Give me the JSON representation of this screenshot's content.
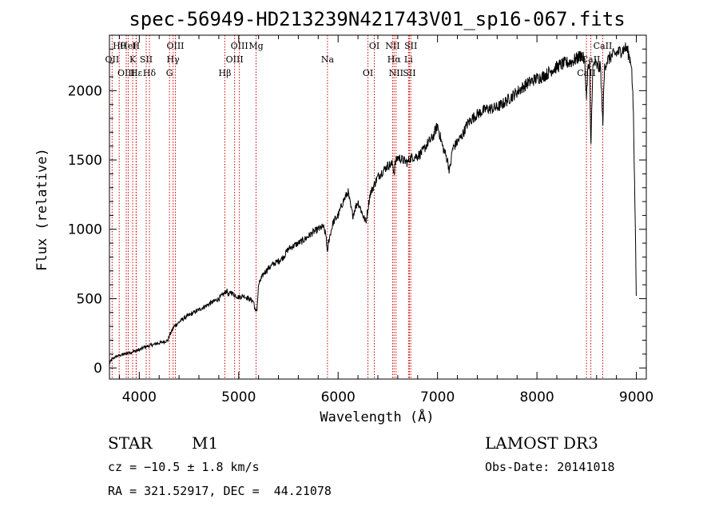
{
  "chart_data": {
    "type": "line",
    "title": "spec-56949-HD213239N421743V01_sp16-067.fits",
    "xlabel": "Wavelength (Å)",
    "ylabel": "Flux (relative)",
    "xlim": [
      3700,
      9100
    ],
    "ylim": [
      -80,
      2400
    ],
    "x_ticks": [
      4000,
      5000,
      6000,
      7000,
      8000,
      9000
    ],
    "y_ticks": [
      0,
      500,
      1000,
      1500,
      2000
    ],
    "grid": false,
    "line_color": "#000000",
    "marker_color": "#cc0000",
    "series": [
      {
        "name": "flux",
        "x": [
          3700,
          3720,
          3760,
          3800,
          3850,
          3900,
          3950,
          4000,
          4050,
          4100,
          4150,
          4200,
          4250,
          4290,
          4300,
          4330,
          4350,
          4400,
          4450,
          4500,
          4550,
          4600,
          4650,
          4700,
          4750,
          4800,
          4830,
          4860,
          4880,
          4900,
          4920,
          4950,
          5000,
          5050,
          5100,
          5150,
          5170,
          5185,
          5200,
          5250,
          5300,
          5350,
          5400,
          5450,
          5500,
          5550,
          5600,
          5650,
          5700,
          5750,
          5800,
          5850,
          5880,
          5893,
          5900,
          5950,
          6000,
          6050,
          6100,
          6130,
          6150,
          6170,
          6200,
          6250,
          6280,
          6300,
          6320,
          6350,
          6400,
          6450,
          6500,
          6550,
          6563,
          6575,
          6600,
          6650,
          6700,
          6720,
          6750,
          6800,
          6850,
          6900,
          6950,
          7000,
          7050,
          7070,
          7100,
          7120,
          7130,
          7150,
          7200,
          7250,
          7300,
          7350,
          7400,
          7450,
          7500,
          7550,
          7600,
          7650,
          7700,
          7750,
          7800,
          7850,
          7900,
          7950,
          8000,
          8050,
          8100,
          8150,
          8200,
          8250,
          8300,
          8350,
          8400,
          8450,
          8480,
          8498,
          8510,
          8530,
          8542,
          8560,
          8580,
          8600,
          8620,
          8640,
          8662,
          8680,
          8700,
          8750,
          8800,
          8850,
          8900,
          8950,
          8970,
          8980,
          8990,
          9000
        ],
        "values": [
          30,
          60,
          80,
          90,
          100,
          110,
          120,
          130,
          150,
          160,
          170,
          180,
          190,
          200,
          230,
          270,
          300,
          330,
          360,
          380,
          400,
          420,
          440,
          460,
          480,
          500,
          520,
          540,
          560,
          520,
          550,
          530,
          510,
          520,
          500,
          480,
          400,
          430,
          600,
          680,
          720,
          750,
          770,
          800,
          860,
          880,
          900,
          920,
          950,
          980,
          1000,
          1020,
          950,
          800,
          900,
          1050,
          1100,
          1200,
          1270,
          1150,
          1100,
          1150,
          1200,
          1100,
          1050,
          1150,
          1250,
          1300,
          1380,
          1420,
          1460,
          1470,
          1400,
          1480,
          1520,
          1500,
          1480,
          1510,
          1520,
          1530,
          1560,
          1620,
          1660,
          1750,
          1600,
          1560,
          1500,
          1420,
          1460,
          1580,
          1630,
          1680,
          1760,
          1800,
          1830,
          1850,
          1870,
          1870,
          1880,
          1900,
          1930,
          1960,
          1990,
          2020,
          2050,
          2070,
          2090,
          2100,
          2120,
          2150,
          2170,
          2190,
          2200,
          2210,
          2230,
          2260,
          2210,
          1950,
          2150,
          2180,
          1560,
          2150,
          2200,
          2180,
          2160,
          2170,
          1760,
          2170,
          2210,
          2250,
          2270,
          2290,
          2310,
          2200,
          1850,
          1400,
          1000,
          480
        ]
      }
    ],
    "line_markers": [
      {
        "label": "Hθ",
        "x": 3798
      },
      {
        "label": "OII",
        "x": 3727
      },
      {
        "label": "OIII",
        "x": 3869
      },
      {
        "label": "HeI",
        "x": 3889
      },
      {
        "label": "K",
        "x": 3934
      },
      {
        "label": "Hε",
        "x": 3970
      },
      {
        "label": "H",
        "x": 3968
      },
      {
        "label": "SII",
        "x": 4070
      },
      {
        "label": "Hδ",
        "x": 4102
      },
      {
        "label": "OIII",
        "x": 4363
      },
      {
        "label": "Hγ",
        "x": 4340
      },
      {
        "label": "G",
        "x": 4304
      },
      {
        "label": "OIII",
        "x": 5007
      },
      {
        "label": "OIII",
        "x": 4959
      },
      {
        "label": "Hβ",
        "x": 4861
      },
      {
        "label": "Mg",
        "x": 5175
      },
      {
        "label": "Na",
        "x": 5893
      },
      {
        "label": "OI",
        "x": 6300
      },
      {
        "label": "OI",
        "x": 6364
      },
      {
        "label": "Hα",
        "x": 6563
      },
      {
        "label": "SII",
        "x": 6717
      },
      {
        "label": "NII",
        "x": 6548
      },
      {
        "label": "Li",
        "x": 6708
      },
      {
        "label": "NII",
        "x": 6583
      },
      {
        "label": "SII",
        "x": 6731
      },
      {
        "label": "CaII",
        "x": 8542
      },
      {
        "label": "CaII",
        "x": 8498
      },
      {
        "label": "CaII",
        "x": 8662
      }
    ]
  },
  "info": {
    "object_class": "STAR",
    "subclass": "M1",
    "survey": "LAMOST DR3",
    "redshift_line": "cz = −10.5 ± 1.8 km/s",
    "obs_date": "Obs-Date: 20141018",
    "coords": "RA = 321.52917, DEC =  44.21078"
  }
}
